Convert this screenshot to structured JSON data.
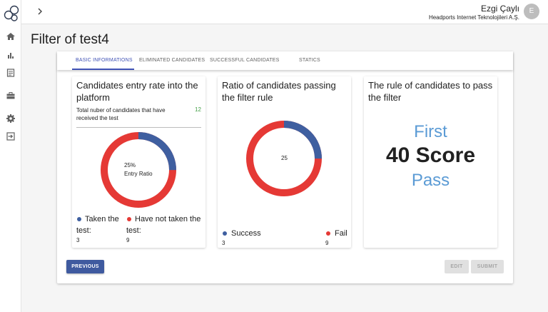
{
  "header": {
    "user_name": "Ezgi Çaylı",
    "company": "Headports Internet Teknolojileri A.Ş.",
    "avatar_initial": "E"
  },
  "sidebar": {
    "icons": [
      "home-icon",
      "bar-chart-icon",
      "document-icon",
      "briefcase-icon",
      "settings-icon",
      "logout-icon"
    ]
  },
  "page": {
    "title": "Filter of test4"
  },
  "tabs": [
    {
      "label": "BASIC INFORMATIONS",
      "active": true
    },
    {
      "label": "ELIMINATED CANDIDATES",
      "active": false
    },
    {
      "label": "SUCCESSFUL CANDIDATES",
      "active": false
    },
    {
      "label": "STATICS",
      "active": false
    }
  ],
  "panels": {
    "entry": {
      "title": "Candidates entry rate into the platform",
      "total_label": "Total nuber of candidates that have received the test",
      "total_value": "12",
      "center_percent": "25%",
      "center_label": "Entry Ratio",
      "legend": [
        {
          "label": "Taken the test:",
          "value": "3",
          "color": "#3f5fa0"
        },
        {
          "label": "Have not taken the test:",
          "value": "9",
          "color": "#e53935"
        }
      ]
    },
    "ratio": {
      "title": "Ratio of candidates passing the filter rule",
      "center_value": "25",
      "legend": [
        {
          "label": "Success",
          "value": "3",
          "color": "#3f5fa0"
        },
        {
          "label": "Fail",
          "value": "9",
          "color": "#e53935"
        }
      ]
    },
    "rule": {
      "title": "The rule of candidates to pass the filter",
      "line1": "First",
      "line2": "40 Score",
      "line3": "Pass"
    }
  },
  "buttons": {
    "previous": "PREVIOUS",
    "edit": "EDIT",
    "submit": "SUBMIT"
  },
  "colors": {
    "primary": "#3f5a9f",
    "success": "#3f5fa0",
    "fail": "#e53935",
    "accent_text": "#5b9bd5",
    "total_green": "#43a047"
  }
}
